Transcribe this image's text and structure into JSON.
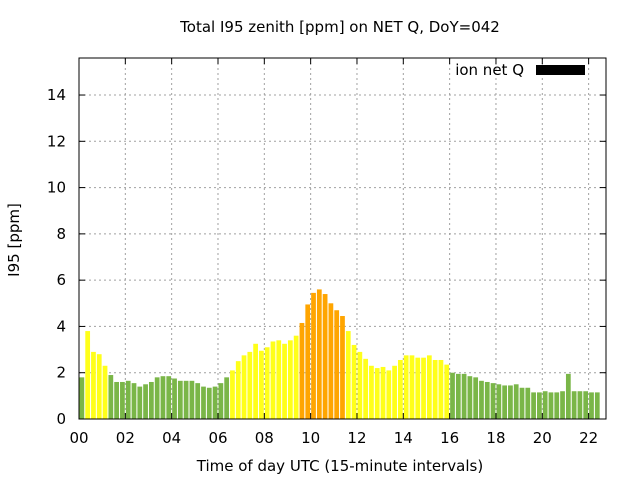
{
  "chart_data": {
    "type": "bar",
    "title": "Total I95 zenith [ppm] on NET Q, DoY=042",
    "xlabel": "Time of day UTC (15-minute intervals)",
    "ylabel": "I95 [ppm]",
    "ylim": [
      0,
      15.6
    ],
    "yticks": [
      0,
      2,
      4,
      6,
      8,
      10,
      12,
      14
    ],
    "xlim": [
      0,
      22.75
    ],
    "xticks": [
      0,
      2,
      4,
      6,
      8,
      10,
      12,
      14,
      16,
      18,
      20,
      22
    ],
    "xtick_labels": [
      "00",
      "02",
      "04",
      "06",
      "08",
      "10",
      "12",
      "14",
      "16",
      "18",
      "20",
      "22"
    ],
    "grid": true,
    "legend": {
      "label": "ion net Q",
      "color": "#000000",
      "position": "top-right"
    },
    "interval_hours": 0.25,
    "colors": {
      "low": "#7ab648",
      "medium": "#ffff1a",
      "high": "#ffa500"
    },
    "values": [
      1.8,
      3.8,
      2.9,
      2.8,
      2.3,
      1.9,
      1.6,
      1.6,
      1.65,
      1.55,
      1.4,
      1.5,
      1.6,
      1.8,
      1.85,
      1.85,
      1.75,
      1.65,
      1.65,
      1.65,
      1.55,
      1.4,
      1.35,
      1.4,
      1.55,
      1.8,
      2.1,
      2.5,
      2.75,
      2.9,
      3.25,
      2.95,
      3.1,
      3.35,
      3.4,
      3.25,
      3.4,
      3.6,
      4.15,
      4.95,
      5.45,
      5.6,
      5.4,
      5.0,
      4.7,
      4.45,
      3.8,
      3.2,
      2.9,
      2.6,
      2.3,
      2.2,
      2.25,
      2.1,
      2.3,
      2.55,
      2.75,
      2.75,
      2.65,
      2.65,
      2.75,
      2.55,
      2.55,
      2.35,
      2.0,
      1.95,
      1.95,
      1.85,
      1.8,
      1.65,
      1.6,
      1.55,
      1.5,
      1.45,
      1.45,
      1.5,
      1.35,
      1.35,
      1.15,
      1.15,
      1.2,
      1.15,
      1.15,
      1.2,
      1.95,
      1.2,
      1.2,
      1.2,
      1.15,
      1.15
    ],
    "levels": [
      "low",
      "medium",
      "medium",
      "medium",
      "medium",
      "low",
      "low",
      "low",
      "low",
      "low",
      "low",
      "low",
      "low",
      "low",
      "low",
      "low",
      "low",
      "low",
      "low",
      "low",
      "low",
      "low",
      "low",
      "low",
      "low",
      "low",
      "medium",
      "medium",
      "medium",
      "medium",
      "medium",
      "medium",
      "medium",
      "medium",
      "medium",
      "medium",
      "medium",
      "medium",
      "high",
      "high",
      "high",
      "high",
      "high",
      "high",
      "high",
      "high",
      "medium",
      "medium",
      "medium",
      "medium",
      "medium",
      "medium",
      "medium",
      "medium",
      "medium",
      "medium",
      "medium",
      "medium",
      "medium",
      "medium",
      "medium",
      "medium",
      "medium",
      "medium",
      "low",
      "low",
      "low",
      "low",
      "low",
      "low",
      "low",
      "low",
      "low",
      "low",
      "low",
      "low",
      "low",
      "low",
      "low",
      "low",
      "low",
      "low",
      "low",
      "low",
      "low",
      "low",
      "low",
      "low",
      "low",
      "low"
    ]
  }
}
